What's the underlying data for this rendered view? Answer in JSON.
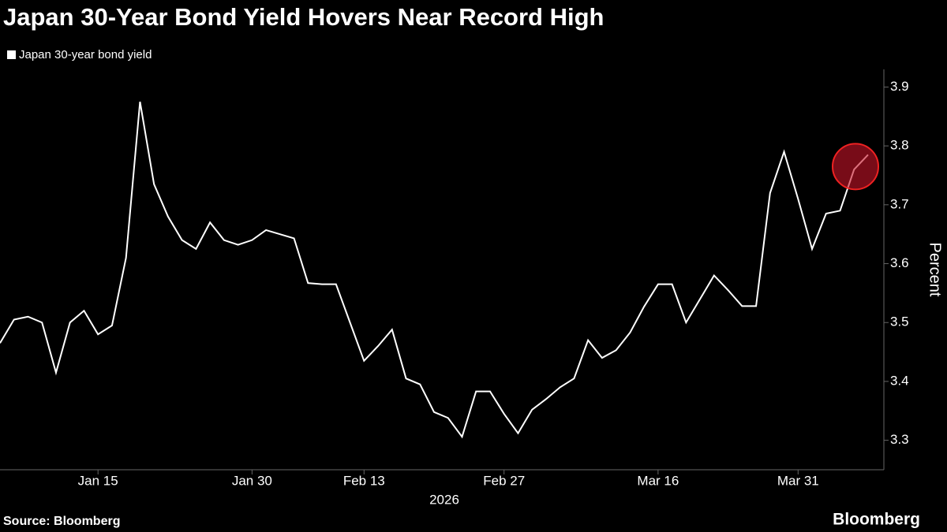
{
  "chart_data": {
    "type": "line",
    "title": "Japan 30-Year Bond Yield Hovers Near Record High",
    "categories": [
      null,
      null,
      null,
      null,
      null,
      null,
      null,
      "Jan 15",
      null,
      null,
      null,
      null,
      null,
      null,
      null,
      null,
      null,
      null,
      "Jan 30",
      null,
      null,
      null,
      null,
      null,
      null,
      null,
      "Feb 13",
      null,
      null,
      null,
      null,
      null,
      null,
      null,
      null,
      null,
      "Feb 27",
      null,
      null,
      null,
      null,
      null,
      null,
      null,
      null,
      null,
      null,
      "Mar 16",
      null,
      null,
      null,
      null,
      null,
      null,
      null,
      null,
      null,
      "Mar 31",
      null,
      null,
      null,
      null,
      null
    ],
    "series": [
      {
        "name": "Japan 30-year bond yield",
        "color": "#ffffff",
        "values": [
          3.465,
          3.505,
          3.51,
          3.5,
          3.415,
          3.5,
          3.52,
          3.48,
          3.495,
          3.61,
          3.875,
          3.735,
          3.68,
          3.64,
          3.625,
          3.67,
          3.64,
          3.632,
          3.64,
          3.657,
          3.65,
          3.643,
          3.567,
          3.565,
          3.565,
          3.5,
          3.435,
          3.46,
          3.488,
          3.405,
          3.395,
          3.348,
          3.338,
          3.306,
          3.383,
          3.383,
          3.345,
          3.312,
          3.352,
          3.37,
          3.39,
          3.405,
          3.47,
          3.44,
          3.453,
          3.483,
          3.527,
          3.565,
          3.565,
          3.5,
          3.54,
          3.58,
          3.555,
          3.528,
          3.528,
          3.72,
          3.79,
          3.71,
          3.625,
          3.685,
          3.69,
          3.76,
          3.785
        ]
      }
    ],
    "xlabel": "2026",
    "ylabel": "Percent",
    "ylim": [
      3.25,
      3.93
    ],
    "yticks": [
      3.3,
      3.4,
      3.5,
      3.6,
      3.7,
      3.8,
      3.9
    ],
    "grid": false,
    "source": "Source: Bloomberg",
    "brand": "Bloomberg"
  }
}
